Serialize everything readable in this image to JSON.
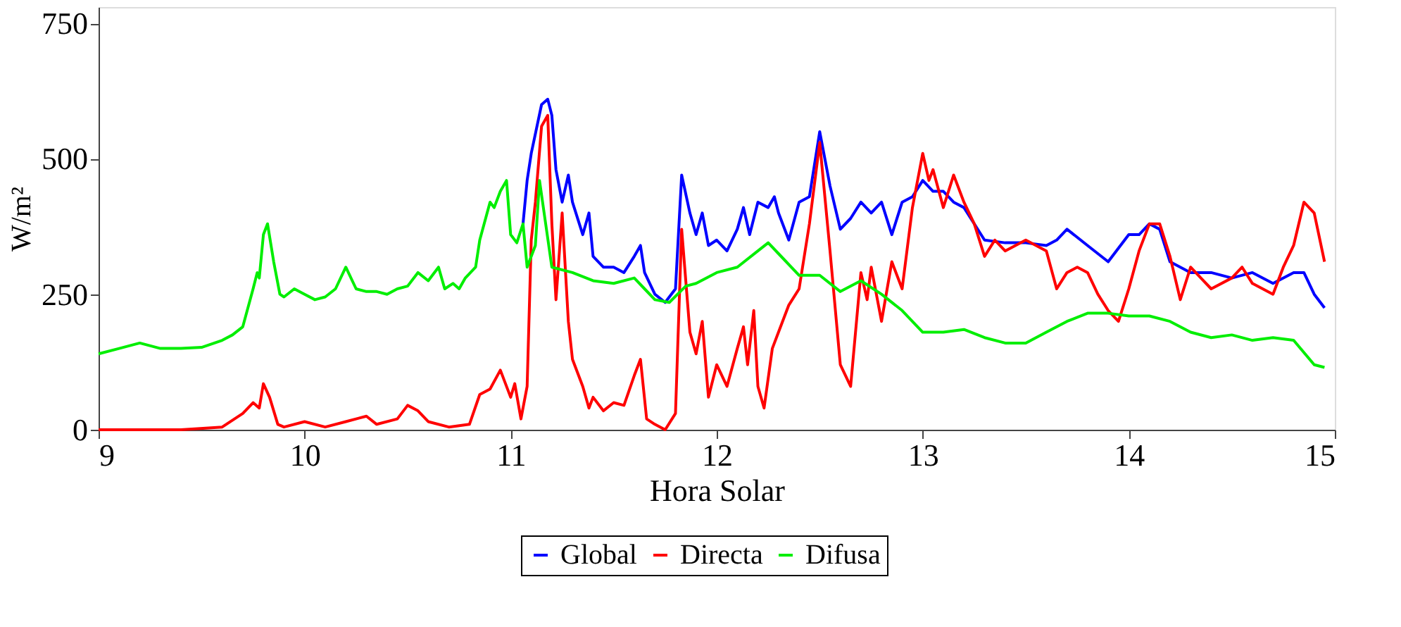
{
  "chart_data": {
    "type": "line",
    "xlabel": "Hora Solar",
    "ylabel": "W/m²",
    "xlim": [
      9,
      15
    ],
    "xticks": [
      9,
      10,
      11,
      12,
      13,
      14,
      15
    ],
    "ylim": [
      0,
      780
    ],
    "yticks": [
      0,
      250,
      500,
      750
    ],
    "grid": false,
    "legend": "bottom",
    "line_style": "solid",
    "marker": "none",
    "series": [
      {
        "name": "Global",
        "color": "#0000ff",
        "x": [
          11.06,
          11.08,
          11.1,
          11.15,
          11.18,
          11.2,
          11.22,
          11.25,
          11.28,
          11.3,
          11.35,
          11.38,
          11.4,
          11.45,
          11.5,
          11.55,
          11.6,
          11.63,
          11.65,
          11.7,
          11.75,
          11.8,
          11.83,
          11.87,
          11.9,
          11.93,
          11.96,
          12.0,
          12.05,
          12.1,
          12.13,
          12.16,
          12.2,
          12.25,
          12.28,
          12.3,
          12.35,
          12.4,
          12.45,
          12.5,
          12.55,
          12.6,
          12.65,
          12.7,
          12.75,
          12.8,
          12.85,
          12.9,
          12.95,
          13.0,
          13.05,
          13.1,
          13.15,
          13.2,
          13.3,
          13.4,
          13.5,
          13.6,
          13.65,
          13.7,
          13.8,
          13.9,
          14.0,
          14.05,
          14.1,
          14.15,
          14.2,
          14.3,
          14.4,
          14.5,
          14.6,
          14.7,
          14.8,
          14.85,
          14.9,
          14.95
        ],
        "values": [
          380,
          460,
          510,
          600,
          610,
          580,
          480,
          420,
          470,
          420,
          360,
          400,
          320,
          300,
          300,
          290,
          320,
          340,
          290,
          250,
          235,
          260,
          470,
          400,
          360,
          400,
          340,
          350,
          330,
          370,
          410,
          360,
          420,
          410,
          430,
          400,
          350,
          420,
          430,
          550,
          450,
          370,
          390,
          420,
          400,
          420,
          360,
          420,
          430,
          460,
          440,
          440,
          420,
          410,
          350,
          345,
          345,
          340,
          350,
          370,
          340,
          310,
          360,
          360,
          380,
          370,
          310,
          290,
          290,
          280,
          290,
          270,
          290,
          290,
          250,
          225
        ]
      },
      {
        "name": "Directa",
        "color": "#ff0000",
        "x": [
          9.0,
          9.4,
          9.6,
          9.7,
          9.75,
          9.78,
          9.8,
          9.83,
          9.87,
          9.9,
          10.0,
          10.1,
          10.2,
          10.3,
          10.35,
          10.45,
          10.5,
          10.55,
          10.6,
          10.7,
          10.8,
          10.85,
          10.9,
          10.95,
          11.0,
          11.02,
          11.05,
          11.08,
          11.1,
          11.12,
          11.15,
          11.18,
          11.2,
          11.22,
          11.25,
          11.28,
          11.3,
          11.35,
          11.38,
          11.4,
          11.45,
          11.5,
          11.55,
          11.6,
          11.63,
          11.66,
          11.7,
          11.75,
          11.8,
          11.83,
          11.87,
          11.9,
          11.93,
          11.96,
          12.0,
          12.05,
          12.1,
          12.13,
          12.15,
          12.18,
          12.2,
          12.23,
          12.27,
          12.3,
          12.35,
          12.4,
          12.45,
          12.5,
          12.55,
          12.6,
          12.65,
          12.7,
          12.73,
          12.75,
          12.8,
          12.85,
          12.9,
          12.95,
          13.0,
          13.03,
          13.05,
          13.1,
          13.15,
          13.2,
          13.25,
          13.3,
          13.35,
          13.4,
          13.5,
          13.6,
          13.65,
          13.7,
          13.75,
          13.8,
          13.85,
          13.9,
          13.95,
          14.0,
          14.05,
          14.1,
          14.15,
          14.2,
          14.25,
          14.3,
          14.35,
          14.4,
          14.5,
          14.55,
          14.6,
          14.7,
          14.75,
          14.8,
          14.85,
          14.9,
          14.95
        ],
        "values": [
          0,
          0,
          5,
          30,
          50,
          40,
          85,
          60,
          10,
          5,
          15,
          5,
          15,
          25,
          10,
          20,
          45,
          35,
          15,
          5,
          10,
          65,
          75,
          110,
          60,
          85,
          20,
          80,
          350,
          420,
          560,
          580,
          380,
          240,
          400,
          200,
          130,
          80,
          40,
          60,
          35,
          50,
          45,
          100,
          130,
          20,
          10,
          0,
          30,
          370,
          180,
          140,
          200,
          60,
          120,
          80,
          150,
          190,
          120,
          220,
          80,
          40,
          150,
          180,
          230,
          260,
          380,
          530,
          330,
          120,
          80,
          290,
          240,
          300,
          200,
          310,
          260,
          410,
          510,
          460,
          480,
          410,
          470,
          420,
          380,
          320,
          350,
          330,
          350,
          330,
          260,
          290,
          300,
          290,
          250,
          220,
          200,
          260,
          330,
          380,
          380,
          320,
          240,
          300,
          280,
          260,
          280,
          300,
          270,
          250,
          300,
          340,
          420,
          400,
          310
        ]
      },
      {
        "name": "Difusa",
        "color": "#00ee00",
        "x": [
          9.0,
          9.1,
          9.2,
          9.3,
          9.4,
          9.5,
          9.6,
          9.65,
          9.7,
          9.75,
          9.77,
          9.78,
          9.8,
          9.82,
          9.85,
          9.88,
          9.9,
          9.95,
          10.0,
          10.05,
          10.1,
          10.15,
          10.2,
          10.25,
          10.3,
          10.35,
          10.4,
          10.45,
          10.5,
          10.55,
          10.6,
          10.65,
          10.68,
          10.72,
          10.75,
          10.78,
          10.83,
          10.85,
          10.9,
          10.92,
          10.95,
          10.98,
          11.0,
          11.03,
          11.06,
          11.08,
          11.12,
          11.14,
          11.17,
          11.2,
          11.3,
          11.4,
          11.5,
          11.6,
          11.65,
          11.7,
          11.77,
          11.85,
          11.9,
          12.0,
          12.1,
          12.2,
          12.25,
          12.3,
          12.4,
          12.5,
          12.6,
          12.7,
          12.8,
          12.9,
          13.0,
          13.1,
          13.2,
          13.3,
          13.4,
          13.5,
          13.6,
          13.7,
          13.8,
          13.9,
          14.0,
          14.1,
          14.2,
          14.3,
          14.4,
          14.5,
          14.6,
          14.7,
          14.8,
          14.9,
          14.95
        ],
        "values": [
          140,
          150,
          160,
          150,
          150,
          152,
          165,
          175,
          190,
          260,
          290,
          280,
          360,
          380,
          310,
          250,
          245,
          260,
          250,
          240,
          245,
          260,
          300,
          260,
          255,
          255,
          250,
          260,
          265,
          290,
          275,
          300,
          260,
          270,
          260,
          280,
          300,
          350,
          420,
          410,
          440,
          460,
          360,
          345,
          380,
          300,
          340,
          460,
          380,
          300,
          290,
          275,
          270,
          280,
          260,
          240,
          235,
          265,
          270,
          290,
          300,
          330,
          345,
          325,
          285,
          285,
          255,
          275,
          250,
          220,
          180,
          180,
          185,
          170,
          160,
          160,
          180,
          200,
          215,
          215,
          210,
          210,
          200,
          180,
          170,
          175,
          165,
          170,
          165,
          120,
          115
        ]
      }
    ]
  }
}
